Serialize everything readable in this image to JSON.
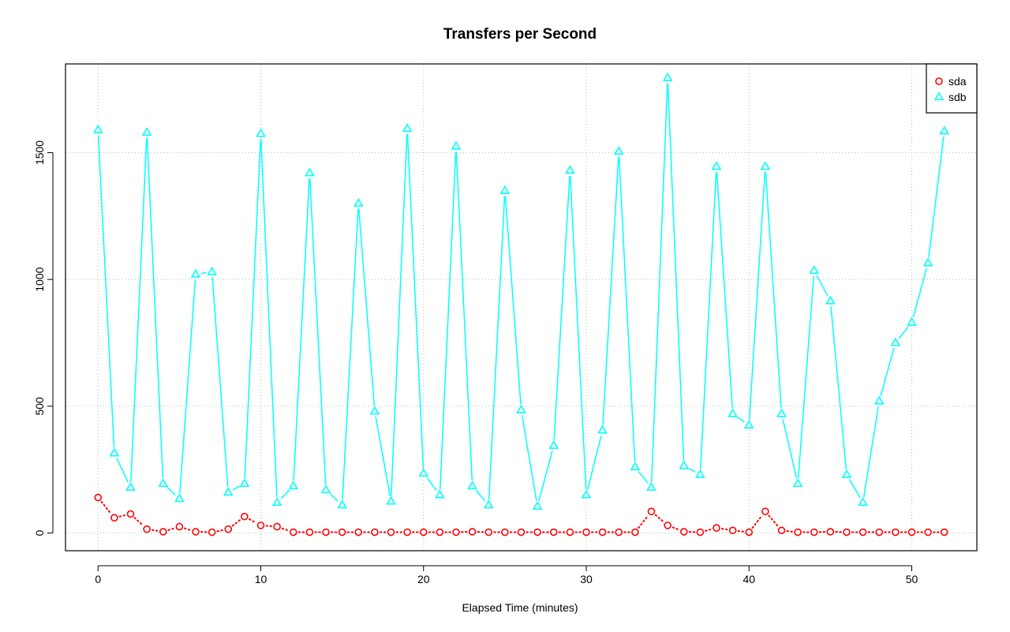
{
  "chart_data": {
    "type": "line",
    "title": "Transfers per Second",
    "xlabel": "Elapsed Time (minutes)",
    "ylabel": "",
    "xlim": [
      -2,
      54
    ],
    "ylim": [
      -70,
      1850
    ],
    "x_ticks": [
      0,
      10,
      20,
      30,
      40,
      50
    ],
    "y_ticks": [
      0,
      500,
      1000,
      1500
    ],
    "grid": true,
    "legend_position": "top-right",
    "x": [
      0,
      1,
      2,
      3,
      4,
      5,
      6,
      7,
      8,
      9,
      10,
      11,
      12,
      13,
      14,
      15,
      16,
      17,
      18,
      19,
      20,
      21,
      22,
      23,
      24,
      25,
      26,
      27,
      28,
      29,
      30,
      31,
      32,
      33,
      34,
      35,
      36,
      37,
      38,
      39,
      40,
      41,
      42,
      43,
      44,
      45,
      46,
      47,
      48,
      49,
      50,
      51,
      52
    ],
    "series": [
      {
        "name": "sda",
        "color": "#ff0000",
        "marker": "circle",
        "line": "dotted",
        "values": [
          140,
          60,
          75,
          15,
          5,
          25,
          5,
          3,
          15,
          65,
          30,
          25,
          3,
          3,
          3,
          3,
          3,
          3,
          3,
          3,
          3,
          3,
          3,
          5,
          3,
          3,
          3,
          3,
          3,
          3,
          3,
          3,
          3,
          3,
          85,
          30,
          5,
          3,
          20,
          10,
          3,
          85,
          10,
          3,
          3,
          5,
          3,
          3,
          3,
          3,
          3,
          3,
          3
        ]
      },
      {
        "name": "sdb",
        "color": "#00ffff",
        "marker": "triangle",
        "line": "solid",
        "values": [
          1590,
          315,
          180,
          1580,
          195,
          135,
          1020,
          1030,
          160,
          195,
          1575,
          120,
          185,
          1420,
          170,
          110,
          1300,
          480,
          125,
          1595,
          235,
          150,
          1525,
          185,
          110,
          1350,
          485,
          105,
          345,
          1430,
          150,
          405,
          1505,
          260,
          180,
          1795,
          265,
          230,
          1445,
          470,
          425,
          1445,
          470,
          195,
          1035,
          915,
          230,
          120,
          520,
          750,
          830,
          1065,
          1585
        ]
      }
    ]
  }
}
